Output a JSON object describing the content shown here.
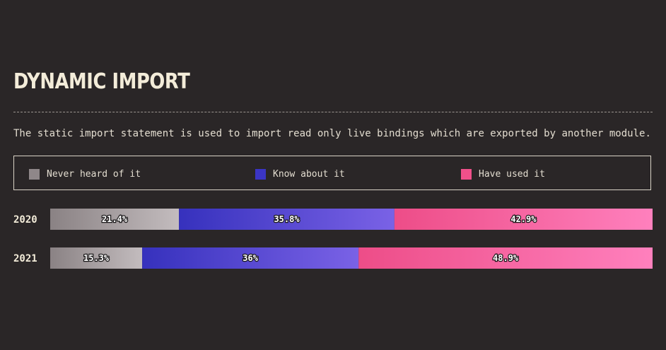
{
  "title": "DYNAMIC IMPORT",
  "description": "The static import statement is used to import read only live bindings which are exported by another module.",
  "legend": [
    {
      "label": "Never heard of it",
      "color": "#8f8789"
    },
    {
      "label": "Know about it",
      "color": "#3b35c4"
    },
    {
      "label": "Have used it",
      "color": "#f0508a"
    }
  ],
  "chart_data": {
    "type": "bar",
    "orientation": "horizontal",
    "stacked": true,
    "normalized": true,
    "categories": [
      "2020",
      "2021"
    ],
    "series": [
      {
        "name": "Never heard of it",
        "values": [
          21.4,
          15.3
        ],
        "labels": [
          "21.4%",
          "15.3%"
        ],
        "color_start": "#8a8284",
        "color_end": "#c3bcbe"
      },
      {
        "name": "Know about it",
        "values": [
          35.8,
          36
        ],
        "labels": [
          "35.8%",
          "36%"
        ],
        "color_start": "#3631bd",
        "color_end": "#7a62e6"
      },
      {
        "name": "Have used it",
        "values": [
          42.9,
          48.9
        ],
        "labels": [
          "42.9%",
          "48.9%"
        ],
        "color_start": "#ed4d88",
        "color_end": "#ff80bd"
      }
    ],
    "legend_position": "top",
    "grid": false
  }
}
